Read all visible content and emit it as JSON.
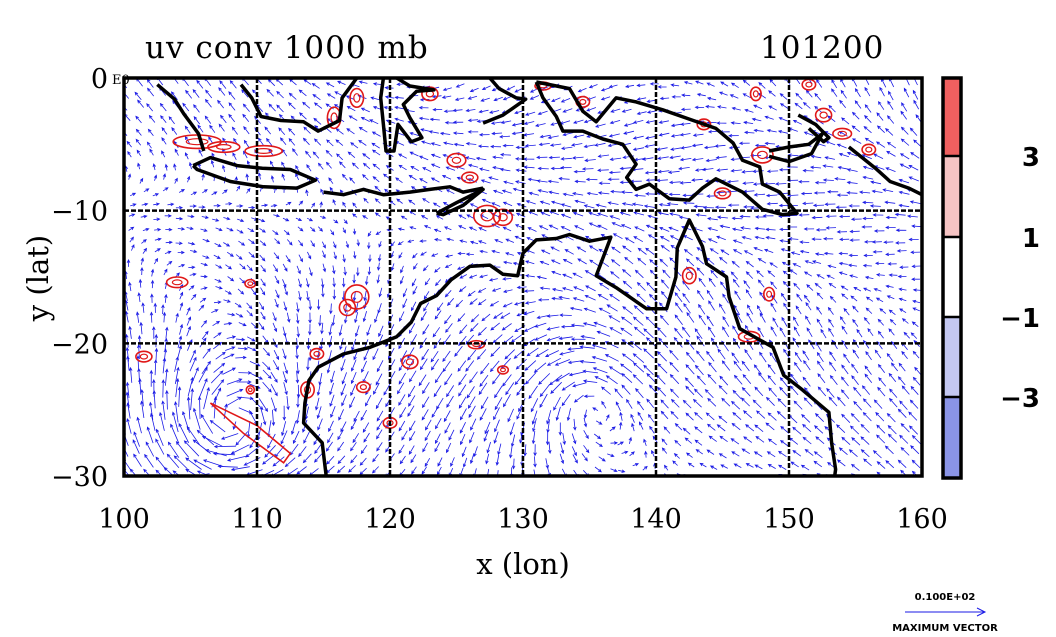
{
  "chart_data": {
    "type": "vector_contour_map",
    "title": "uv conv 1000 mb",
    "subtitle": "101200",
    "xlabel": "x (lon)",
    "ylabel": "y (lat)",
    "xlim": [
      100,
      160
    ],
    "ylim": [
      -30,
      0
    ],
    "x_ticks": [
      {
        "value": 100,
        "label": "100"
      },
      {
        "value": 110,
        "label": "110"
      },
      {
        "value": 120,
        "label": "120"
      },
      {
        "value": 130,
        "label": "130"
      },
      {
        "value": 140,
        "label": "140"
      },
      {
        "value": 150,
        "label": "150"
      },
      {
        "value": 160,
        "label": "160"
      }
    ],
    "y_ticks": [
      {
        "value": 0,
        "label": "0"
      },
      {
        "value": -10,
        "label": "−10"
      },
      {
        "value": -20,
        "label": "−20"
      },
      {
        "value": -30,
        "label": "−30"
      }
    ],
    "y_zero_annotation": "E0",
    "grid": true,
    "colorbar": {
      "placement": "right",
      "levels": [
        {
          "label": "3",
          "value": 3
        },
        {
          "label": "1",
          "value": 1
        },
        {
          "label": "−1",
          "value": -1
        },
        {
          "label": "−3",
          "value": -3
        }
      ],
      "bands": [
        {
          "from": 3,
          "to": null,
          "color": "#f06060"
        },
        {
          "from": 1,
          "to": 3,
          "color": "#f6c4c4"
        },
        {
          "from": -1,
          "to": 1,
          "color": "#ffffff"
        },
        {
          "from": -3,
          "to": -1,
          "color": "#c4c8f2"
        },
        {
          "from": null,
          "to": -3,
          "color": "#8a94e6"
        }
      ]
    },
    "vector_legend": {
      "value_label": "0.100E+02",
      "caption": "MAXIMUM VECTOR"
    },
    "colors": {
      "vectors": "#1a1ae6",
      "positive_contours": "#e01818",
      "coastline": "#000000"
    }
  }
}
